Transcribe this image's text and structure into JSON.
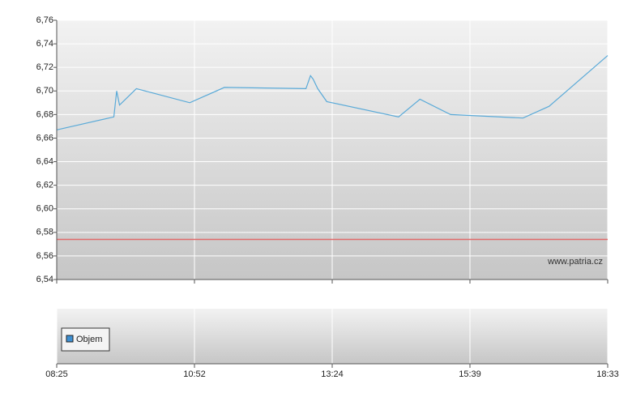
{
  "chart_data": [
    {
      "type": "line",
      "x": [
        "08:25",
        "09:26",
        "09:29",
        "09:32",
        "09:50",
        "10:47",
        "11:25",
        "12:55",
        "13:00",
        "13:03",
        "13:08",
        "13:18",
        "14:29",
        "14:50",
        "15:20",
        "16:46",
        "17:19",
        "18:33"
      ],
      "series": [
        {
          "color": "#5aaad8",
          "values": [
            6.667,
            6.678,
            6.7,
            6.688,
            6.702,
            6.69,
            6.703,
            6.702,
            6.713,
            6.71,
            6.702,
            6.691,
            6.678,
            6.693,
            6.68,
            6.677,
            6.687,
            6.73
          ]
        }
      ],
      "ylim": [
        6.54,
        6.76
      ],
      "yticks": [
        {
          "value": 6.54,
          "label": "6,54"
        },
        {
          "value": 6.56,
          "label": "6,56"
        },
        {
          "value": 6.58,
          "label": "6,58"
        },
        {
          "value": 6.6,
          "label": "6,60"
        },
        {
          "value": 6.62,
          "label": "6,62"
        },
        {
          "value": 6.64,
          "label": "6,64"
        },
        {
          "value": 6.66,
          "label": "6,66"
        },
        {
          "value": 6.68,
          "label": "6,68"
        },
        {
          "value": 6.7,
          "label": "6,70"
        },
        {
          "value": 6.72,
          "label": "6,72"
        },
        {
          "value": 6.74,
          "label": "6,74"
        },
        {
          "value": 6.76,
          "label": "6,76"
        }
      ],
      "reference_line": {
        "value": 6.574,
        "color": "#e06a6a"
      },
      "watermark": "www.patria.cz",
      "grid": true
    },
    {
      "type": "bar",
      "series": [
        {
          "name": "Objem",
          "color": "#3d8fd1",
          "values": []
        }
      ],
      "xticks": [
        "08:25",
        "10:52",
        "13:24",
        "15:39",
        "18:33"
      ],
      "grid": true
    }
  ]
}
